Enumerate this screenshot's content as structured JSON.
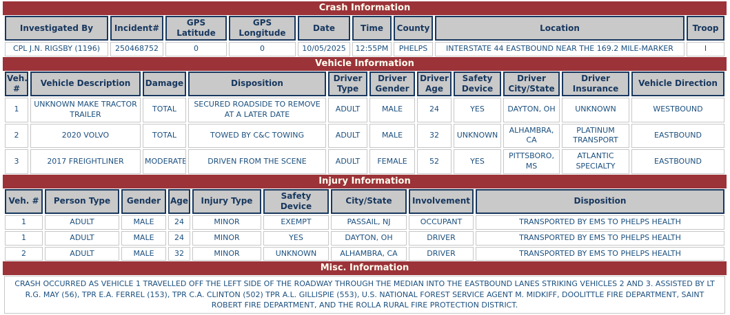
{
  "colors": {
    "section_band_bg": "#9B3339",
    "section_band_text": "#FFFFF0",
    "header_cell_bg": "#C9C9C9",
    "header_border": "#17375E",
    "header_text": "#17375E",
    "cell_text": "#1B4F7E",
    "cell_border": "#C6C6C6"
  },
  "sections": {
    "crash": {
      "title": "Crash Information",
      "columns": [
        "Investigated By",
        "Incident#",
        "GPS Latitude",
        "GPS Longitude",
        "Date",
        "Time",
        "County",
        "Location",
        "Troop"
      ],
      "rows": [
        [
          "CPL J.N. RIGSBY (1196)",
          "250468752",
          "0",
          "0",
          "10/05/2025",
          "12:55PM",
          "PHELPS",
          "INTERSTATE 44 EASTBOUND NEAR THE 169.2 MILE-MARKER",
          "I"
        ]
      ]
    },
    "vehicle": {
      "title": "Vehicle Information",
      "columns": [
        "Veh. #",
        "Vehicle Description",
        "Damage",
        "Disposition",
        "Driver Type",
        "Driver Gender",
        "Driver Age",
        "Safety Device",
        "Driver City/State",
        "Driver Insurance",
        "Vehicle Direction"
      ],
      "rows": [
        [
          "1",
          "UNKNOWN MAKE TRACTOR TRAILER",
          "TOTAL",
          "SECURED ROADSIDE TO REMOVE AT A LATER DATE",
          "ADULT",
          "MALE",
          "24",
          "YES",
          "DAYTON, OH",
          "UNKNOWN",
          "WESTBOUND"
        ],
        [
          "2",
          "2020 VOLVO",
          "TOTAL",
          "TOWED BY C&C TOWING",
          "ADULT",
          "MALE",
          "32",
          "UNKNOWN",
          "ALHAMBRA, CA",
          "PLATINUM TRANSPORT",
          "EASTBOUND"
        ],
        [
          "3",
          "2017 FREIGHTLINER",
          "MODERATE",
          "DRIVEN FROM THE SCENE",
          "ADULT",
          "FEMALE",
          "52",
          "YES",
          "PITTSBORO, MS",
          "ATLANTIC SPECIALTY",
          "EASTBOUND"
        ]
      ]
    },
    "injury": {
      "title": "Injury Information",
      "columns": [
        "Veh. #",
        "Person Type",
        "Gender",
        "Age",
        "Injury Type",
        "Safety Device",
        "City/State",
        "Involvement",
        "Disposition"
      ],
      "rows": [
        [
          "1",
          "ADULT",
          "MALE",
          "24",
          "MINOR",
          "EXEMPT",
          "PASSAIL, NJ",
          "OCCUPANT",
          "TRANSPORTED BY EMS TO PHELPS HEALTH"
        ],
        [
          "1",
          "ADULT",
          "MALE",
          "24",
          "MINOR",
          "YES",
          "DAYTON, OH",
          "DRIVER",
          "TRANSPORTED BY EMS TO PHELPS HEALTH"
        ],
        [
          "2",
          "ADULT",
          "MALE",
          "32",
          "MINOR",
          "UNKNOWN",
          "ALHAMBRA, CA",
          "DRIVER",
          "TRANSPORTED BY EMS TO PHELPS HEALTH"
        ]
      ]
    },
    "misc": {
      "title": "Misc. Information",
      "text": "CRASH OCCURRED AS VEHICLE 1 TRAVELLED OFF THE LEFT SIDE OF THE ROADWAY THROUGH THE MEDIAN INTO THE EASTBOUND LANES STRIKING VEHICLES 2 AND 3. ASSISTED BY LT R.G. MAY (56), TPR E.A. FERREL (153), TPR C.A. CLINTON (502) TPR A.L. GILLISPIE (553), U.S. NATIONAL FOREST SERVICE AGENT M. MIDKIFF, DOOLITTLE FIRE DEPARTMENT, SAINT ROBERT FIRE DEPARTMENT, AND THE ROLLA RURAL FIRE PROTECTION DISTRICT."
    }
  }
}
